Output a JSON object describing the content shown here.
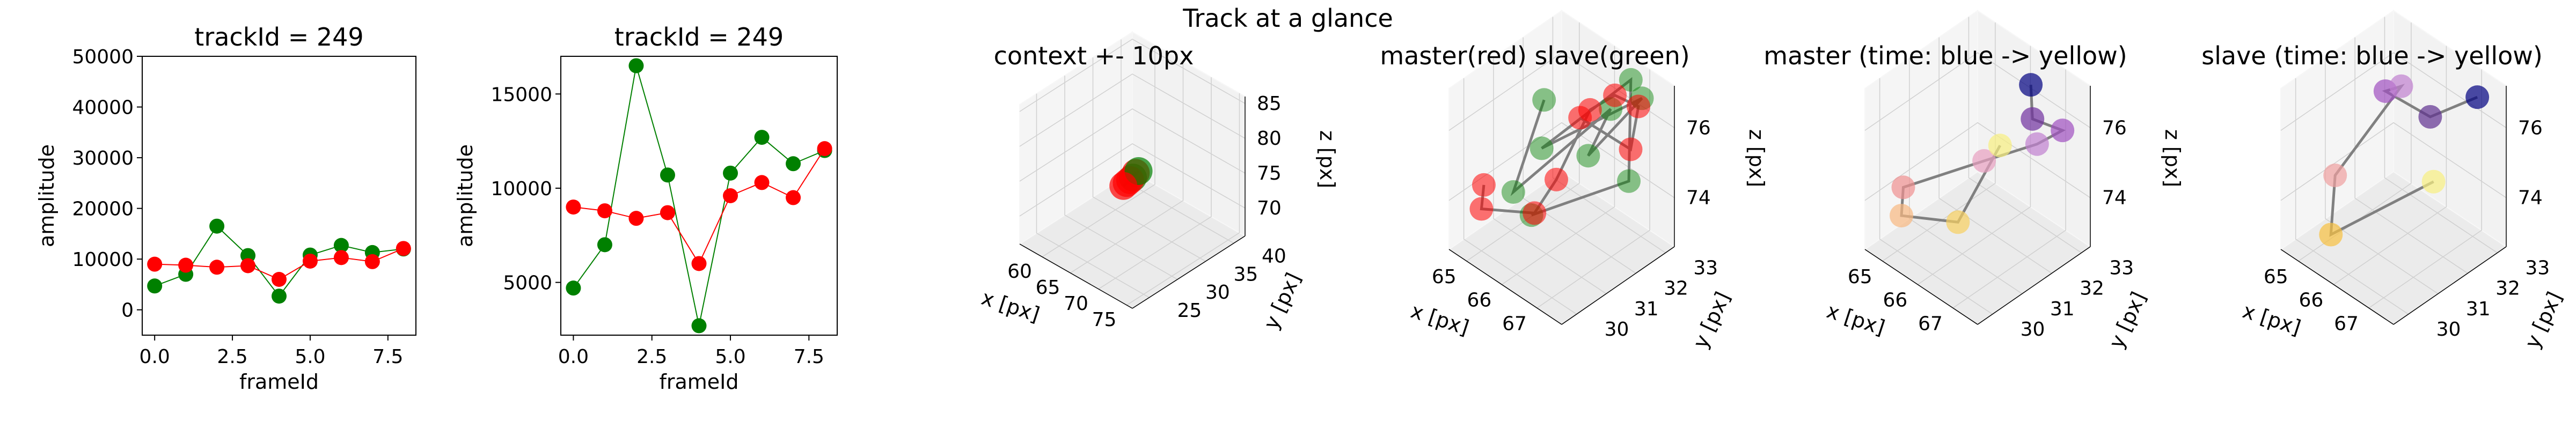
{
  "suptitle": "Track at a glance",
  "colors": {
    "master": "#ff0000",
    "slave": "#008000",
    "path": "#808080",
    "pane": "#ebebeb",
    "grid": "#d0d0d0"
  },
  "chart_data": [
    {
      "type": "line",
      "title": "trackId = 249",
      "xlabel": "frameId",
      "ylabel": "amplitude",
      "xlim": [
        -0.4,
        8.4
      ],
      "ylim": [
        -5000,
        50000
      ],
      "xticks": [
        "0.0",
        "2.5",
        "5.0",
        "7.5"
      ],
      "yticks": [
        "0",
        "10000",
        "20000",
        "30000",
        "40000",
        "50000"
      ],
      "x": [
        0,
        1,
        2,
        3,
        4,
        5,
        6,
        7,
        8
      ],
      "series": [
        {
          "role": "slave",
          "color": "#008000",
          "values": [
            4700,
            7000,
            16500,
            10700,
            2700,
            10800,
            12700,
            11300,
            12000
          ]
        },
        {
          "role": "master",
          "color": "#ff0000",
          "values": [
            9000,
            8800,
            8400,
            8700,
            6000,
            9600,
            10300,
            9500,
            12100
          ]
        }
      ]
    },
    {
      "type": "line",
      "title": "trackId = 249",
      "xlabel": "frameId",
      "ylabel": "amplitude",
      "xlim": [
        -0.4,
        8.4
      ],
      "ylim": [
        2200,
        17000
      ],
      "xticks": [
        "0.0",
        "2.5",
        "5.0",
        "7.5"
      ],
      "yticks": [
        "5000",
        "10000",
        "15000"
      ],
      "x": [
        0,
        1,
        2,
        3,
        4,
        5,
        6,
        7,
        8
      ],
      "series": [
        {
          "role": "slave",
          "color": "#008000",
          "values": [
            4700,
            7000,
            16500,
            10700,
            2700,
            10800,
            12700,
            11300,
            12000
          ]
        },
        {
          "role": "master",
          "color": "#ff0000",
          "values": [
            9000,
            8800,
            8400,
            8700,
            6000,
            9600,
            10300,
            9500,
            12100
          ]
        }
      ]
    },
    {
      "type": "scatter3d",
      "title": "context +- 10px",
      "xlabel": "x [px]",
      "ylabel": "y [px]",
      "zlabel": "z [px]",
      "xticks": [
        "60",
        "65",
        "70",
        "75"
      ],
      "yticks": [
        "25",
        "30",
        "35",
        "40"
      ],
      "zticks": [
        "70",
        "75",
        "80",
        "85"
      ],
      "xlim": [
        56,
        76
      ],
      "ylim": [
        22,
        42
      ],
      "zlim": [
        66,
        86
      ],
      "points": [
        {
          "x": 66.1,
          "y": 32.0,
          "z": 75.0,
          "color": "#008000"
        },
        {
          "x": 65.8,
          "y": 31.8,
          "z": 74.6,
          "color": "#ff0000"
        },
        {
          "x": 66.3,
          "y": 32.3,
          "z": 75.6,
          "color": "#ff0000"
        },
        {
          "x": 65.5,
          "y": 31.5,
          "z": 74.2,
          "color": "#ff0000"
        },
        {
          "x": 66.6,
          "y": 32.5,
          "z": 75.9,
          "color": "#008000"
        },
        {
          "x": 65.2,
          "y": 31.2,
          "z": 73.8,
          "color": "#ff0000"
        }
      ]
    },
    {
      "type": "scatter3d",
      "title": "master(red) slave(green)",
      "xlabel": "x [px]",
      "ylabel": "y [px]",
      "zlabel": "z [px]",
      "xticks": [
        "65",
        "66",
        "67"
      ],
      "yticks": [
        "30",
        "31",
        "32",
        "33"
      ],
      "zticks": [
        "74",
        "76"
      ],
      "xlim": [
        64.5,
        67.7
      ],
      "ylim": [
        29.5,
        33.3
      ],
      "zlim": [
        72.6,
        77.2
      ],
      "master": [
        {
          "x": 64.9,
          "y": 30.2,
          "z": 74.3
        },
        {
          "x": 65.0,
          "y": 30.0,
          "z": 73.8
        },
        {
          "x": 66.0,
          "y": 30.6,
          "z": 74.0
        },
        {
          "x": 66.2,
          "y": 31.1,
          "z": 74.8
        },
        {
          "x": 66.4,
          "y": 32.0,
          "z": 76.4
        },
        {
          "x": 66.6,
          "y": 32.6,
          "z": 76.6
        },
        {
          "x": 67.1,
          "y": 32.8,
          "z": 76.5
        },
        {
          "x": 67.3,
          "y": 32.3,
          "z": 75.7
        },
        {
          "x": 66.2,
          "y": 31.9,
          "z": 76.1
        }
      ],
      "slave": [
        {
          "x": 65.6,
          "y": 31.4,
          "z": 76.5
        },
        {
          "x": 65.4,
          "y": 30.6,
          "z": 74.2
        },
        {
          "x": 66.9,
          "y": 32.1,
          "z": 76.7
        },
        {
          "x": 66.6,
          "y": 31.7,
          "z": 75.4
        },
        {
          "x": 67.2,
          "y": 32.8,
          "z": 76.8
        },
        {
          "x": 65.7,
          "y": 31.2,
          "z": 75.3
        },
        {
          "x": 66.8,
          "y": 32.9,
          "z": 77.0
        },
        {
          "x": 67.5,
          "y": 32.0,
          "z": 75.1
        },
        {
          "x": 66.0,
          "y": 30.5,
          "z": 74.0
        }
      ]
    },
    {
      "type": "scatter3d",
      "title": "master (time: blue -> yellow)",
      "xlabel": "x [px]",
      "ylabel": "y [px]",
      "zlabel": "z [px]",
      "xticks": [
        "65",
        "66",
        "67"
      ],
      "yticks": [
        "30",
        "31",
        "32",
        "33"
      ],
      "zticks": [
        "74",
        "76"
      ],
      "xlim": [
        64.5,
        67.7
      ],
      "ylim": [
        29.5,
        33.3
      ],
      "zlim": [
        72.6,
        77.2
      ],
      "points": [
        {
          "x": 66.6,
          "y": 32.6,
          "z": 76.9,
          "color": "#000080"
        },
        {
          "x": 66.9,
          "y": 32.3,
          "z": 76.3,
          "color": "#7030a0"
        },
        {
          "x": 67.5,
          "y": 32.6,
          "z": 76.2,
          "color": "#a050c0"
        },
        {
          "x": 67.2,
          "y": 32.1,
          "z": 75.9,
          "color": "#c080d0"
        },
        {
          "x": 66.2,
          "y": 31.5,
          "z": 75.1,
          "color": "#e8a0c0"
        },
        {
          "x": 65.0,
          "y": 30.2,
          "z": 74.3,
          "color": "#f09090"
        },
        {
          "x": 65.2,
          "y": 29.9,
          "z": 73.8,
          "color": "#f8b880"
        },
        {
          "x": 66.3,
          "y": 30.5,
          "z": 74.0,
          "color": "#f8d060"
        },
        {
          "x": 66.4,
          "y": 31.8,
          "z": 75.5,
          "color": "#f8f080"
        }
      ]
    },
    {
      "type": "scatter3d",
      "title": "slave (time: blue -> yellow)",
      "xlabel": "x [px]",
      "ylabel": "y [px]",
      "zlabel": "z [px]",
      "xticks": [
        "65",
        "66",
        "67"
      ],
      "yticks": [
        "30",
        "31",
        "32",
        "33"
      ],
      "zticks": [
        "74",
        "76"
      ],
      "xlim": [
        64.5,
        67.7
      ],
      "ylim": [
        29.5,
        33.3
      ],
      "zlim": [
        72.6,
        77.2
      ],
      "points": [
        {
          "x": 67.3,
          "y": 32.8,
          "z": 76.9,
          "color": "#000080"
        },
        {
          "x": 66.3,
          "y": 32.4,
          "z": 75.9,
          "color": "#603090"
        },
        {
          "x": 65.7,
          "y": 31.6,
          "z": 76.7,
          "color": "#a050c0"
        },
        {
          "x": 65.9,
          "y": 31.9,
          "z": 76.8,
          "color": "#c080d0"
        },
        {
          "x": 65.2,
          "y": 30.5,
          "z": 74.6,
          "color": "#f0a0a0"
        },
        {
          "x": 65.5,
          "y": 30.0,
          "z": 73.4,
          "color": "#f8c040"
        },
        {
          "x": 66.9,
          "y": 31.8,
          "z": 74.8,
          "color": "#f8f080"
        }
      ]
    }
  ]
}
